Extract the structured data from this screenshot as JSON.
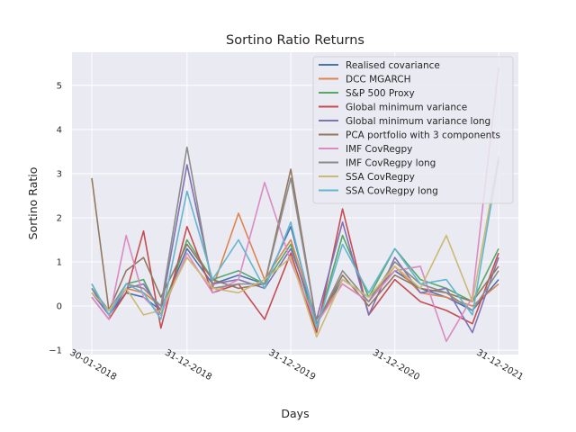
{
  "chart_data": {
    "type": "line",
    "title": "Sortino Ratio Returns",
    "xlabel": "Days",
    "ylabel": "Sortino Ratio",
    "x": [
      "30-01-2018",
      "31-03-2018",
      "31-05-2018",
      "31-07-2018",
      "30-09-2018",
      "31-12-2018",
      "31-03-2019",
      "30-06-2019",
      "30-09-2019",
      "31-12-2019",
      "31-03-2020",
      "30-06-2020",
      "30-09-2020",
      "31-12-2020",
      "31-03-2021",
      "30-06-2021",
      "30-09-2021",
      "31-12-2021"
    ],
    "xticks": [
      "30-01-2018",
      "31-12-2018",
      "31-12-2019",
      "31-12-2020",
      "31-12-2021"
    ],
    "yticks": [
      -1,
      0,
      1,
      2,
      3,
      4,
      5
    ],
    "ylim": [
      -1.1,
      5.75
    ],
    "grid": true,
    "legend_position": "top-right",
    "series": [
      {
        "name": "Realised covariance",
        "color": "#4c72b0",
        "values": [
          0.4,
          -0.2,
          0.3,
          0.2,
          -0.1,
          1.3,
          0.5,
          0.7,
          0.5,
          1.8,
          -0.4,
          0.6,
          0.2,
          0.8,
          0.4,
          0.2,
          -0.1,
          0.6
        ]
      },
      {
        "name": "DCC MGARCH",
        "color": "#dd8452",
        "values": [
          0.3,
          -0.1,
          0.4,
          0.3,
          0.0,
          1.1,
          0.4,
          2.1,
          0.6,
          1.5,
          -0.3,
          0.5,
          0.1,
          0.9,
          0.3,
          0.2,
          0.0,
          0.5
        ]
      },
      {
        "name": "S&P 500 Proxy",
        "color": "#55a868",
        "values": [
          0.5,
          -0.2,
          0.5,
          0.6,
          -0.2,
          1.5,
          0.6,
          0.8,
          0.5,
          1.4,
          -0.5,
          1.6,
          0.2,
          1.3,
          0.6,
          0.4,
          0.1,
          1.3
        ]
      },
      {
        "name": "Global minimum variance",
        "color": "#c44e52",
        "values": [
          0.2,
          -0.3,
          0.3,
          1.7,
          -0.5,
          1.8,
          0.3,
          0.5,
          -0.3,
          1.2,
          -0.6,
          2.2,
          -0.2,
          0.6,
          0.1,
          -0.1,
          -0.4,
          1.2
        ]
      },
      {
        "name": "Global minimum variance long",
        "color": "#8172b3",
        "values": [
          0.3,
          -0.2,
          0.4,
          0.5,
          -0.1,
          3.2,
          0.5,
          0.6,
          0.4,
          1.3,
          -0.3,
          1.9,
          -0.2,
          1.1,
          0.3,
          0.4,
          -0.6,
          1.1
        ]
      },
      {
        "name": "PCA portfolio with 3 components",
        "color": "#937860",
        "values": [
          2.9,
          -0.1,
          0.8,
          1.1,
          0.2,
          1.4,
          0.6,
          0.4,
          0.5,
          3.1,
          -0.4,
          0.7,
          0.0,
          0.7,
          0.4,
          0.3,
          0.1,
          0.9
        ]
      },
      {
        "name": "IMF CovRegpy",
        "color": "#da8bc3",
        "values": [
          0.2,
          -0.3,
          1.6,
          0.2,
          -0.2,
          1.2,
          0.3,
          0.6,
          2.8,
          1.0,
          -0.4,
          0.5,
          0.1,
          0.8,
          0.9,
          -0.8,
          0.2,
          5.4
        ]
      },
      {
        "name": "IMF CovRegpy long",
        "color": "#8c8c8c",
        "values": [
          0.4,
          -0.1,
          0.5,
          0.4,
          0.0,
          3.6,
          0.4,
          0.5,
          0.5,
          2.9,
          -0.4,
          0.8,
          0.1,
          1.0,
          0.5,
          0.3,
          -0.1,
          0.8
        ]
      },
      {
        "name": "SSA CovRegpy",
        "color": "#ccb974",
        "values": [
          0.3,
          -0.1,
          0.4,
          -0.2,
          -0.1,
          1.1,
          0.4,
          0.3,
          0.6,
          1.1,
          -0.7,
          0.6,
          0.2,
          0.9,
          0.4,
          1.6,
          0.1,
          3.4
        ]
      },
      {
        "name": "SSA CovRegpy long",
        "color": "#64b5cd",
        "values": [
          0.5,
          -0.2,
          0.5,
          0.3,
          -0.3,
          2.6,
          0.6,
          1.5,
          0.4,
          1.9,
          -0.5,
          1.4,
          0.3,
          1.3,
          0.5,
          0.6,
          -0.2,
          3.3
        ]
      }
    ]
  }
}
